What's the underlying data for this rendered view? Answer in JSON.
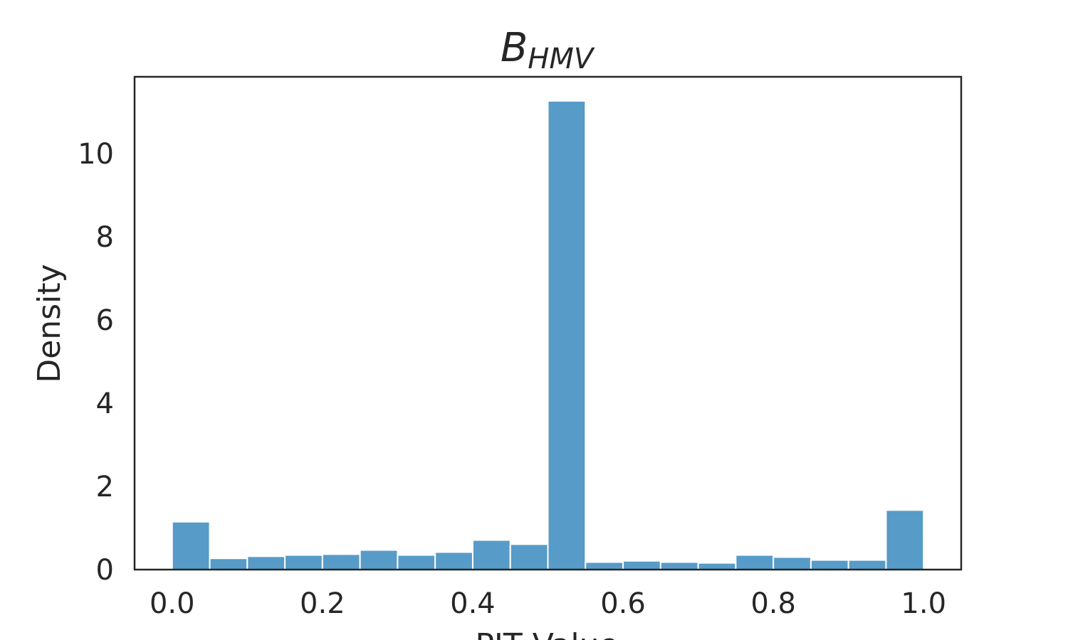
{
  "chart_data": {
    "type": "bar",
    "title_main": "B",
    "title_sub": "HMV",
    "xlabel": "PIT Value",
    "ylabel": "Density",
    "xlim": [
      -0.05,
      1.05
    ],
    "ylim": [
      0,
      11.85
    ],
    "xticks": [
      "0.0",
      "0.2",
      "0.4",
      "0.6",
      "0.8",
      "1.0"
    ],
    "yticks": [
      "0",
      "2",
      "4",
      "6",
      "8",
      "10"
    ],
    "bin_edges": [
      0.0,
      0.05,
      0.1,
      0.15,
      0.2,
      0.25,
      0.3,
      0.35,
      0.4,
      0.45,
      0.5,
      0.55,
      0.6,
      0.65,
      0.7,
      0.75,
      0.8,
      0.85,
      0.9,
      0.95,
      1.0
    ],
    "values": [
      1.15,
      0.27,
      0.32,
      0.35,
      0.37,
      0.47,
      0.35,
      0.42,
      0.71,
      0.61,
      11.27,
      0.18,
      0.21,
      0.18,
      0.16,
      0.35,
      0.3,
      0.23,
      0.23,
      1.43
    ],
    "bar_color": "#579bc8",
    "grid": false
  }
}
